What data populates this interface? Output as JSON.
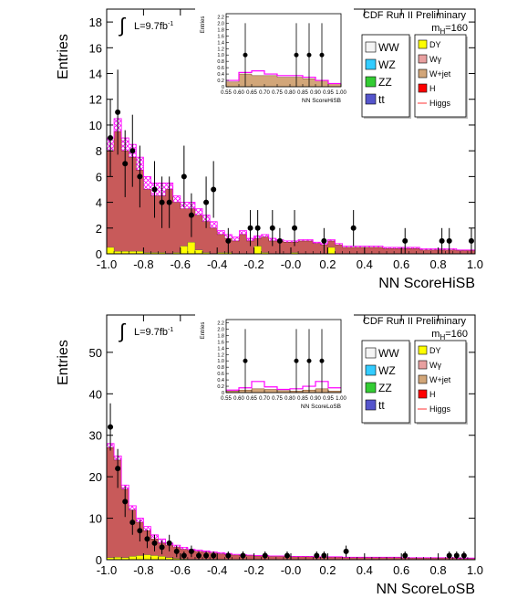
{
  "chart_data": [
    {
      "type": "bar",
      "title": "CDF Run II Preliminary",
      "xlabel": "NN ScoreHiSB",
      "ylabel": "Entries",
      "lumi": "L=9.7fb",
      "lumi_sup": "-1",
      "mass": "m",
      "mass_sub": "H",
      "mass_val": "=160",
      "xlim": [
        -1.0,
        1.0
      ],
      "ylim": [
        0,
        19
      ],
      "xticks": [
        "-1.0",
        "-0.8",
        "-0.6",
        "-0.4",
        "-0.2",
        "-0.0",
        "0.2",
        "0.4",
        "0.6",
        "0.8",
        "1.0"
      ],
      "yticks": [
        "0",
        "2",
        "4",
        "6",
        "8",
        "10",
        "12",
        "14",
        "16",
        "18"
      ],
      "legend_left": [
        "WW",
        "WZ",
        "ZZ",
        "tt"
      ],
      "legend_right": [
        "DY",
        "Wγ",
        "W+jet",
        "H",
        "Higgs"
      ],
      "colors": {
        "ww": "#f5f5f5",
        "wz": "#33ccff",
        "zz": "#33cc33",
        "tt": "#5555cc",
        "dy": "#ffff00",
        "wg": "#e8a0a0",
        "wjet": "#d2a679",
        "h": "#ff0000",
        "higgs": "#ff3333",
        "bkg": "#c85a5a",
        "hatch": "#ff00ff"
      },
      "bin_edges": [
        -1.0,
        -0.96,
        -0.92,
        -0.88,
        -0.84,
        -0.8,
        -0.76,
        -0.72,
        -0.68,
        -0.64,
        -0.6,
        -0.56,
        -0.52,
        -0.48,
        -0.44,
        -0.4,
        -0.36,
        -0.32,
        -0.28,
        -0.24,
        -0.2,
        -0.16,
        -0.12,
        -0.08,
        -0.04,
        0.0,
        0.04,
        0.08,
        0.12,
        0.16,
        0.2,
        0.24,
        0.28,
        0.32,
        0.36,
        0.4,
        0.5,
        0.6,
        0.7,
        0.8,
        0.9,
        1.0
      ],
      "series": [
        {
          "name": "Total background",
          "values": [
            8.0,
            9.5,
            8.0,
            7.5,
            6.5,
            5.0,
            4.5,
            4.5,
            5.0,
            4.0,
            3.5,
            3.5,
            3.0,
            2.5,
            2.0,
            1.5,
            1.2,
            1.0,
            1.5,
            1.0,
            1.2,
            1.3,
            1.0,
            1.0,
            0.9,
            0.9,
            1.0,
            1.0,
            0.8,
            0.7,
            1.0,
            0.7,
            0.5,
            0.5,
            0.5,
            0.5,
            0.4,
            0.4,
            0.3,
            0.3,
            0.25
          ]
        },
        {
          "name": "DY",
          "values": [
            0.5,
            0.2,
            0.2,
            0.2,
            0.2,
            0.1,
            0.1,
            0.1,
            0.0,
            0.1,
            0.6,
            0.9,
            0.3,
            0.1,
            0.0,
            0.1,
            0.1,
            0.0,
            0.0,
            0.0,
            0.6,
            0.1,
            0.0,
            0.0,
            0.0,
            0.1,
            0.0,
            0.0,
            0.0,
            0.0,
            0.5,
            0.0,
            0.0,
            0.0,
            0.0,
            0.0,
            0.0,
            0.0,
            0.0,
            0.0,
            0.0
          ]
        },
        {
          "name": "Higgs",
          "values": [
            9.0,
            10.5,
            9.0,
            8.5,
            7.5,
            6.0,
            5.5,
            5.5,
            5.5,
            4.5,
            4.0,
            4.0,
            3.5,
            3.0,
            2.5,
            1.8,
            1.5,
            1.3,
            1.8,
            1.2,
            1.4,
            1.5,
            1.2,
            1.1,
            1.0,
            1.0,
            1.1,
            1.1,
            0.9,
            0.8,
            1.1,
            0.8,
            0.6,
            0.6,
            0.6,
            0.6,
            0.5,
            0.5,
            0.4,
            0.4,
            0.3
          ]
        }
      ],
      "points": [
        {
          "x": -0.98,
          "y": 9,
          "err": 3
        },
        {
          "x": -0.94,
          "y": 11,
          "err": 3.3
        },
        {
          "x": -0.9,
          "y": 7,
          "err": 2.6
        },
        {
          "x": -0.86,
          "y": 8,
          "err": 2.8
        },
        {
          "x": -0.82,
          "y": 6,
          "err": 2.4
        },
        {
          "x": -0.74,
          "y": 5,
          "err": 2.2
        },
        {
          "x": -0.7,
          "y": 4,
          "err": 2
        },
        {
          "x": -0.66,
          "y": 4,
          "err": 2
        },
        {
          "x": -0.58,
          "y": 6,
          "err": 2.4
        },
        {
          "x": -0.54,
          "y": 3,
          "err": 1.7
        },
        {
          "x": -0.46,
          "y": 4,
          "err": 2
        },
        {
          "x": -0.42,
          "y": 5,
          "err": 2.2
        },
        {
          "x": -0.34,
          "y": 1,
          "err": 1
        },
        {
          "x": -0.22,
          "y": 2,
          "err": 1.4
        },
        {
          "x": -0.18,
          "y": 2,
          "err": 1.4
        },
        {
          "x": -0.1,
          "y": 2,
          "err": 1.4
        },
        {
          "x": -0.06,
          "y": 1,
          "err": 1
        },
        {
          "x": 0.02,
          "y": 2,
          "err": 1.4
        },
        {
          "x": 0.18,
          "y": 1,
          "err": 1
        },
        {
          "x": 0.34,
          "y": 2,
          "err": 1.4
        },
        {
          "x": 0.62,
          "y": 1,
          "err": 1
        },
        {
          "x": 0.82,
          "y": 1,
          "err": 1
        },
        {
          "x": 0.86,
          "y": 1,
          "err": 1
        },
        {
          "x": 0.98,
          "y": 1,
          "err": 1
        }
      ],
      "inset": {
        "xlabel": "NN ScoreHiSB",
        "ylabel": "Entries",
        "xlim": [
          0.55,
          1.0
        ],
        "ylim": [
          0,
          2.3
        ],
        "xticks": [
          "0.55",
          "0.60",
          "0.65",
          "0.70",
          "0.75",
          "0.80",
          "0.85",
          "0.90",
          "0.95",
          "1.00"
        ],
        "yticks": [
          "0",
          "0.2",
          "0.4",
          "0.6",
          "0.8",
          "1.0",
          "1.2",
          "1.4",
          "1.6",
          "1.8",
          "2.0",
          "2.2"
        ],
        "bin_edges": [
          0.55,
          0.6,
          0.65,
          0.7,
          0.75,
          0.8,
          0.85,
          0.9,
          0.95,
          1.0
        ],
        "series": [
          {
            "name": "Total background",
            "values": [
              0.15,
              0.4,
              0.35,
              0.35,
              0.3,
              0.3,
              0.25,
              0.2,
              0.1
            ]
          },
          {
            "name": "Higgs",
            "values": [
              0.2,
              0.45,
              0.5,
              0.4,
              0.35,
              0.35,
              0.3,
              0.2,
              0.1
            ]
          }
        ],
        "points": [
          {
            "x": 0.625,
            "y": 1,
            "err": 1
          },
          {
            "x": 0.825,
            "y": 1,
            "err": 1
          },
          {
            "x": 0.875,
            "y": 1,
            "err": 1
          },
          {
            "x": 0.925,
            "y": 1,
            "err": 1
          }
        ]
      }
    },
    {
      "type": "bar",
      "title": "CDF Run II Preliminary",
      "xlabel": "NN ScoreLoSB",
      "ylabel": "Entries",
      "lumi": "L=9.7fb",
      "lumi_sup": "-1",
      "mass": "m",
      "mass_sub": "H",
      "mass_val": "=160",
      "xlim": [
        -1.0,
        1.0
      ],
      "ylim": [
        0,
        59
      ],
      "xticks": [
        "-1.0",
        "-0.8",
        "-0.6",
        "-0.4",
        "-0.2",
        "-0.0",
        "0.2",
        "0.4",
        "0.6",
        "0.8",
        "1.0"
      ],
      "yticks": [
        "0",
        "10",
        "20",
        "30",
        "40",
        "50"
      ],
      "legend_left": [
        "WW",
        "WZ",
        "ZZ",
        "tt"
      ],
      "legend_right": [
        "DY",
        "Wγ",
        "W+jet",
        "H",
        "Higgs"
      ],
      "colors": {
        "ww": "#f5f5f5",
        "wz": "#33ccff",
        "zz": "#33cc33",
        "tt": "#5555cc",
        "dy": "#ffff00",
        "wg": "#e8a0a0",
        "wjet": "#d2a679",
        "h": "#ff0000",
        "higgs": "#ff3333",
        "bkg": "#c85a5a",
        "hatch": "#ff00ff"
      },
      "bin_edges": [
        -1.0,
        -0.96,
        -0.92,
        -0.88,
        -0.84,
        -0.8,
        -0.76,
        -0.72,
        -0.68,
        -0.64,
        -0.6,
        -0.56,
        -0.52,
        -0.48,
        -0.44,
        -0.4,
        -0.36,
        -0.32,
        -0.28,
        -0.24,
        -0.2,
        -0.16,
        -0.12,
        -0.08,
        -0.04,
        0.0,
        0.04,
        0.08,
        0.12,
        0.16,
        0.2,
        0.24,
        0.28,
        0.32,
        0.36,
        0.4,
        0.5,
        0.6,
        0.7,
        0.8,
        0.9,
        1.0
      ],
      "series": [
        {
          "name": "Total background",
          "values": [
            27,
            24,
            17,
            12,
            9,
            7,
            5,
            4,
            3.5,
            3,
            2.5,
            2.2,
            2,
            1.8,
            1.6,
            1.4,
            1.2,
            1.1,
            1.0,
            1.0,
            0.9,
            0.9,
            0.8,
            0.8,
            0.8,
            0.7,
            0.7,
            0.7,
            0.6,
            0.6,
            0.6,
            0.6,
            0.5,
            0.5,
            0.5,
            0.5,
            0.5,
            0.4,
            0.4,
            0.4,
            0.3
          ]
        },
        {
          "name": "DY",
          "values": [
            0.5,
            0.6,
            0.5,
            0.8,
            1.0,
            1.2,
            1.0,
            0.8,
            0.5,
            0.3,
            0.2,
            0.1,
            0.1,
            0.1,
            0.1,
            0.1,
            0.0,
            0.0,
            0.0,
            0.0,
            0.0,
            0.0,
            0.0,
            0.0,
            0.0,
            0.0,
            0.0,
            0.0,
            0.0,
            0.0,
            0.0,
            0.0,
            0.0,
            0.0,
            0.0,
            0.0,
            0.0,
            0.0,
            0.0,
            0.0,
            0.0
          ]
        },
        {
          "name": "Higgs",
          "values": [
            28,
            25,
            18,
            13,
            10,
            8,
            6,
            5,
            4,
            3.5,
            3,
            2.5,
            2.3,
            2.1,
            1.9,
            1.7,
            1.5,
            1.3,
            1.2,
            1.1,
            1.0,
            1.0,
            0.9,
            0.9,
            0.9,
            0.8,
            0.8,
            0.8,
            0.7,
            0.7,
            0.7,
            0.7,
            0.6,
            0.6,
            0.6,
            0.6,
            0.6,
            0.5,
            0.5,
            0.5,
            0.4
          ]
        }
      ],
      "points": [
        {
          "x": -0.98,
          "y": 32,
          "err": 5.7
        },
        {
          "x": -0.94,
          "y": 22,
          "err": 4.7
        },
        {
          "x": -0.9,
          "y": 14,
          "err": 3.7
        },
        {
          "x": -0.86,
          "y": 9,
          "err": 3
        },
        {
          "x": -0.82,
          "y": 7,
          "err": 2.6
        },
        {
          "x": -0.78,
          "y": 5,
          "err": 2.2
        },
        {
          "x": -0.74,
          "y": 4,
          "err": 2
        },
        {
          "x": -0.7,
          "y": 3,
          "err": 1.7
        },
        {
          "x": -0.66,
          "y": 4,
          "err": 2
        },
        {
          "x": -0.62,
          "y": 2,
          "err": 1.4
        },
        {
          "x": -0.58,
          "y": 1,
          "err": 1
        },
        {
          "x": -0.54,
          "y": 2,
          "err": 1.4
        },
        {
          "x": -0.5,
          "y": 1,
          "err": 1
        },
        {
          "x": -0.46,
          "y": 1,
          "err": 1
        },
        {
          "x": -0.42,
          "y": 1,
          "err": 1
        },
        {
          "x": -0.34,
          "y": 1,
          "err": 1
        },
        {
          "x": -0.26,
          "y": 1,
          "err": 1
        },
        {
          "x": -0.14,
          "y": 1,
          "err": 1
        },
        {
          "x": -0.02,
          "y": 1,
          "err": 1
        },
        {
          "x": 0.14,
          "y": 1,
          "err": 1
        },
        {
          "x": 0.18,
          "y": 1,
          "err": 1
        },
        {
          "x": 0.3,
          "y": 2,
          "err": 1.4
        },
        {
          "x": 0.62,
          "y": 1,
          "err": 1
        },
        {
          "x": 0.86,
          "y": 1,
          "err": 1
        },
        {
          "x": 0.9,
          "y": 1,
          "err": 1
        },
        {
          "x": 0.94,
          "y": 1,
          "err": 1
        }
      ],
      "inset": {
        "xlabel": "NN ScoreLoSB",
        "ylabel": "Entries",
        "xlim": [
          0.55,
          1.0
        ],
        "ylim": [
          0,
          2.3
        ],
        "xticks": [
          "0.55",
          "0.60",
          "0.65",
          "0.70",
          "0.75",
          "0.80",
          "0.85",
          "0.90",
          "0.95",
          "1.00"
        ],
        "yticks": [
          "0",
          "0.2",
          "0.4",
          "0.6",
          "0.8",
          "1.0",
          "1.2",
          "1.4",
          "1.6",
          "1.8",
          "2.0",
          "2.2"
        ],
        "bin_edges": [
          0.55,
          0.6,
          0.65,
          0.7,
          0.75,
          0.8,
          0.85,
          0.9,
          0.95,
          1.0
        ],
        "series": [
          {
            "name": "Total background",
            "values": [
              0.05,
              0.08,
              0.12,
              0.1,
              0.06,
              0.05,
              0.08,
              0.12,
              0.05
            ]
          },
          {
            "name": "Higgs",
            "values": [
              0.08,
              0.15,
              0.35,
              0.18,
              0.1,
              0.12,
              0.2,
              0.35,
              0.15
            ]
          }
        ],
        "points": [
          {
            "x": 0.625,
            "y": 1,
            "err": 1
          },
          {
            "x": 0.825,
            "y": 1,
            "err": 1
          },
          {
            "x": 0.875,
            "y": 1,
            "err": 1
          },
          {
            "x": 0.925,
            "y": 1,
            "err": 1
          }
        ]
      }
    }
  ]
}
